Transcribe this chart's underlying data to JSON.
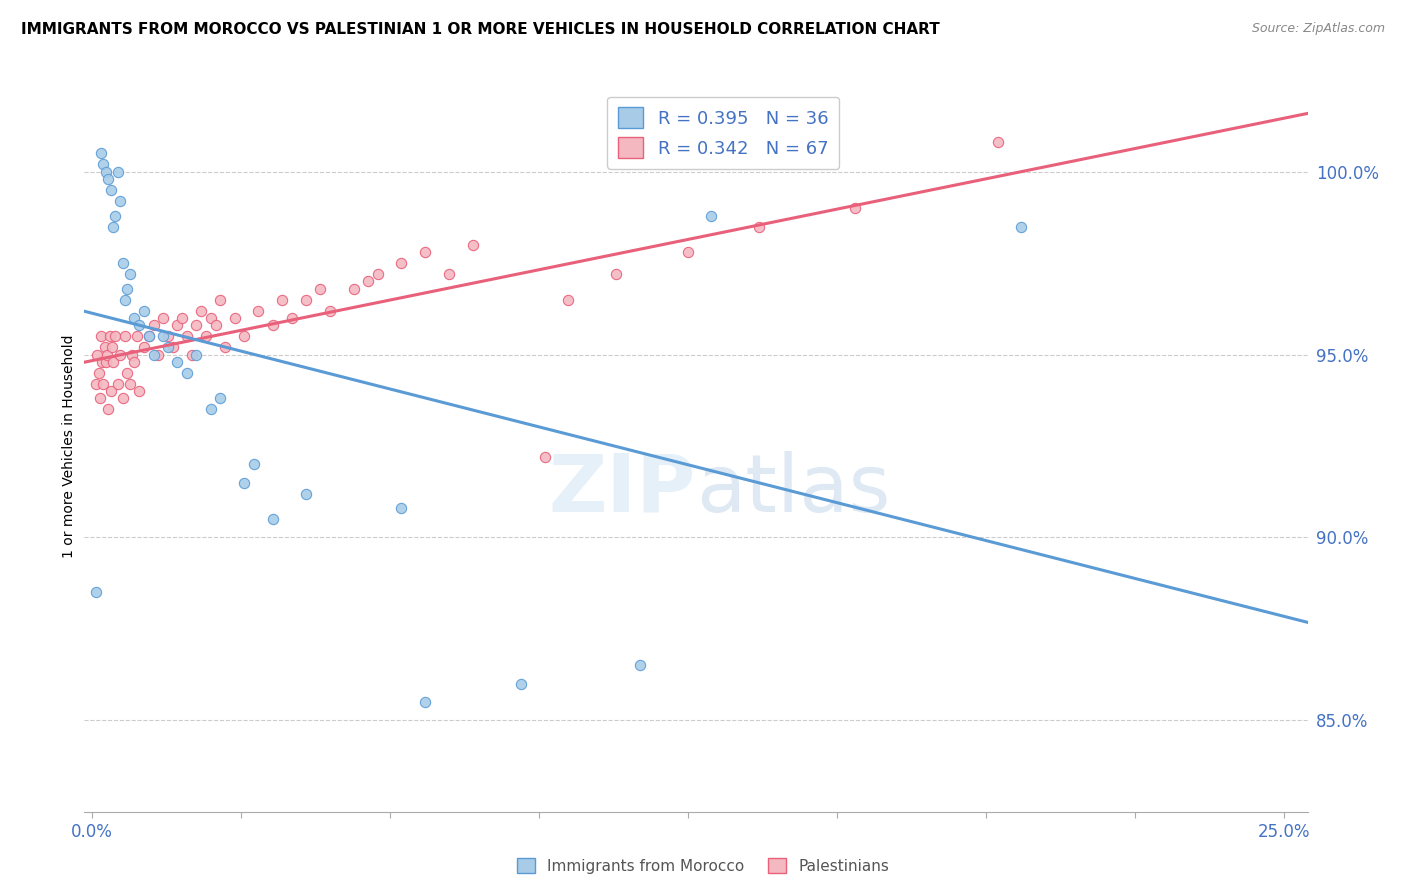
{
  "title": "IMMIGRANTS FROM MOROCCO VS PALESTINIAN 1 OR MORE VEHICLES IN HOUSEHOLD CORRELATION CHART",
  "source": "Source: ZipAtlas.com",
  "ylabel": "1 or more Vehicles in Household",
  "ytick_values": [
    85.0,
    90.0,
    95.0,
    100.0
  ],
  "ymin": 82.5,
  "ymax": 102.5,
  "xmin": -0.15,
  "xmax": 25.5,
  "morocco_R": 0.395,
  "morocco_N": 36,
  "palestinian_R": 0.342,
  "palestinian_N": 67,
  "morocco_color": "#a8cce8",
  "morocco_line_color": "#5b9bd5",
  "palestinian_color": "#f4b8c1",
  "palestinian_line_color": "#e8607a",
  "watermark": "ZIPatlas",
  "morocco_x": [
    0.1,
    0.2,
    0.25,
    0.3,
    0.35,
    0.4,
    0.45,
    0.5,
    0.55,
    0.6,
    0.65,
    0.7,
    0.75,
    0.8,
    0.9,
    1.0,
    1.1,
    1.2,
    1.3,
    1.5,
    1.6,
    1.8,
    2.0,
    2.2,
    2.5,
    2.7,
    3.2,
    3.4,
    3.8,
    4.5,
    6.5,
    7.0,
    9.0,
    11.5,
    13.0,
    19.5
  ],
  "morocco_y": [
    88.5,
    100.5,
    100.2,
    100.0,
    99.8,
    99.5,
    98.5,
    98.8,
    100.0,
    99.2,
    97.5,
    96.5,
    96.8,
    97.2,
    96.0,
    95.8,
    96.2,
    95.5,
    95.0,
    95.5,
    95.2,
    94.8,
    94.5,
    95.0,
    93.5,
    93.8,
    91.5,
    92.0,
    90.5,
    91.2,
    90.8,
    85.5,
    86.0,
    86.5,
    98.8,
    98.5
  ],
  "palestinian_x": [
    0.1,
    0.12,
    0.15,
    0.18,
    0.2,
    0.22,
    0.25,
    0.28,
    0.3,
    0.32,
    0.35,
    0.38,
    0.4,
    0.42,
    0.45,
    0.5,
    0.55,
    0.6,
    0.65,
    0.7,
    0.75,
    0.8,
    0.85,
    0.9,
    0.95,
    1.0,
    1.1,
    1.2,
    1.3,
    1.4,
    1.5,
    1.6,
    1.7,
    1.8,
    1.9,
    2.0,
    2.1,
    2.2,
    2.3,
    2.4,
    2.5,
    2.6,
    2.7,
    2.8,
    3.0,
    3.2,
    3.5,
    3.8,
    4.0,
    4.2,
    4.5,
    4.8,
    5.0,
    5.5,
    5.8,
    6.0,
    6.5,
    7.0,
    7.5,
    8.0,
    9.5,
    10.0,
    11.0,
    12.5,
    14.0,
    16.0,
    19.0
  ],
  "palestinian_y": [
    94.2,
    95.0,
    94.5,
    93.8,
    95.5,
    94.8,
    94.2,
    95.2,
    94.8,
    95.0,
    93.5,
    95.5,
    94.0,
    95.2,
    94.8,
    95.5,
    94.2,
    95.0,
    93.8,
    95.5,
    94.5,
    94.2,
    95.0,
    94.8,
    95.5,
    94.0,
    95.2,
    95.5,
    95.8,
    95.0,
    96.0,
    95.5,
    95.2,
    95.8,
    96.0,
    95.5,
    95.0,
    95.8,
    96.2,
    95.5,
    96.0,
    95.8,
    96.5,
    95.2,
    96.0,
    95.5,
    96.2,
    95.8,
    96.5,
    96.0,
    96.5,
    96.8,
    96.2,
    96.8,
    97.0,
    97.2,
    97.5,
    97.8,
    97.2,
    98.0,
    92.2,
    96.5,
    97.2,
    97.8,
    98.5,
    99.0,
    100.8
  ]
}
